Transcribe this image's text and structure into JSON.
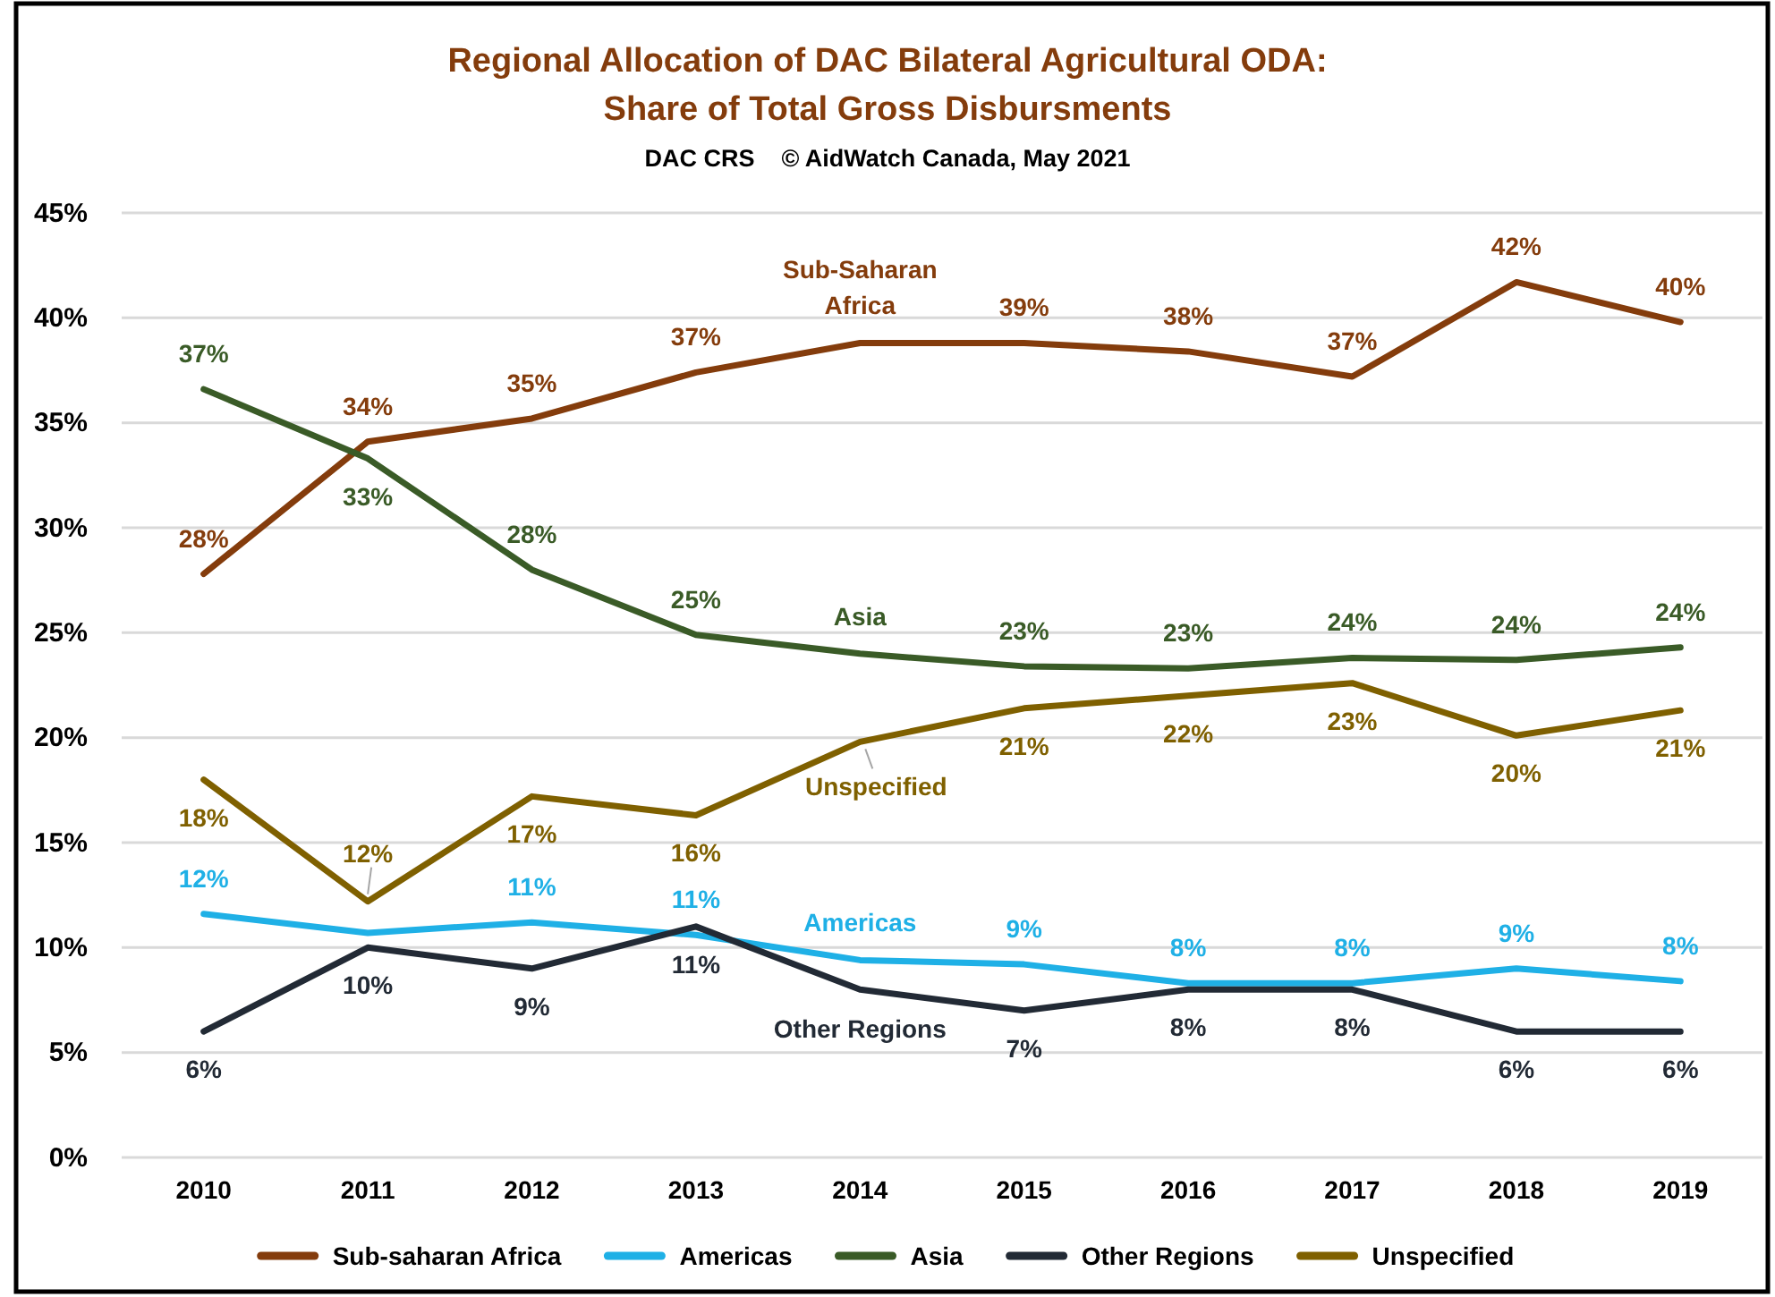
{
  "chart_data": {
    "type": "line",
    "title": "Regional Allocation of DAC Bilateral Agricultural ODA: Share of Total Gross Disbursments",
    "subtitle": "DAC CRS    © AidWatch Canada, May 2021",
    "categories": [
      "2010",
      "2011",
      "2012",
      "2013",
      "2014",
      "2015",
      "2016",
      "2017",
      "2018",
      "2019"
    ],
    "series": [
      {
        "name": "Sub-saharan Africa",
        "color": "#843c0c",
        "values": [
          27.8,
          34.1,
          35.2,
          37.4,
          38.8,
          38.8,
          38.4,
          37.2,
          41.7,
          39.8
        ],
        "value_labels": [
          "28%",
          "34%",
          "35%",
          "37%",
          null,
          "39%",
          "38%",
          "37%",
          "42%",
          "40%"
        ]
      },
      {
        "name": "Americas",
        "color": "#1fb0e6",
        "values": [
          11.6,
          10.7,
          11.2,
          10.6,
          9.4,
          9.2,
          8.3,
          8.3,
          9.0,
          8.4
        ],
        "value_labels": [
          "12%",
          null,
          "11%",
          "11%",
          null,
          "9%",
          "8%",
          "8%",
          "9%",
          "8%"
        ]
      },
      {
        "name": "Asia",
        "color": "#3a5b27",
        "values": [
          36.6,
          33.3,
          28.0,
          24.9,
          24.0,
          23.4,
          23.3,
          23.8,
          23.7,
          24.3
        ],
        "value_labels": [
          "37%",
          "33%",
          "28%",
          "25%",
          null,
          "23%",
          "23%",
          "24%",
          "24%",
          "24%"
        ]
      },
      {
        "name": "Other Regions",
        "color": "#222a35",
        "values": [
          6.0,
          10.0,
          9.0,
          11.0,
          8.0,
          7.0,
          8.0,
          8.0,
          6.0,
          6.0
        ],
        "value_labels": [
          "6%",
          "10%",
          "9%",
          "11%",
          null,
          "7%",
          "8%",
          "8%",
          "6%",
          "6%"
        ]
      },
      {
        "name": "Unspecified",
        "color": "#7f6000",
        "values": [
          18.0,
          12.2,
          17.2,
          16.3,
          19.8,
          21.4,
          22.0,
          22.6,
          20.1,
          21.3
        ],
        "value_labels": [
          "18%",
          "12%",
          "17%",
          "16%",
          null,
          "21%",
          "22%",
          "23%",
          "20%",
          "21%"
        ]
      }
    ],
    "ylim": [
      0,
      45
    ],
    "yticks": [
      {
        "value": 0,
        "label": "0%"
      },
      {
        "value": 5,
        "label": "5%"
      },
      {
        "value": 10,
        "label": "10%"
      },
      {
        "value": 15,
        "label": "15%"
      },
      {
        "value": 20,
        "label": "20%"
      },
      {
        "value": 25,
        "label": "25%"
      },
      {
        "value": 30,
        "label": "30%"
      },
      {
        "value": 35,
        "label": "35%"
      },
      {
        "value": 40,
        "label": "40%"
      },
      {
        "value": 45,
        "label": "45%"
      }
    ],
    "grid": "y",
    "legend": "bottom",
    "annotations": [
      "Sub-Saharan Africa",
      "Asia",
      "Unspecified",
      "Americas",
      "Other Regions"
    ]
  }
}
